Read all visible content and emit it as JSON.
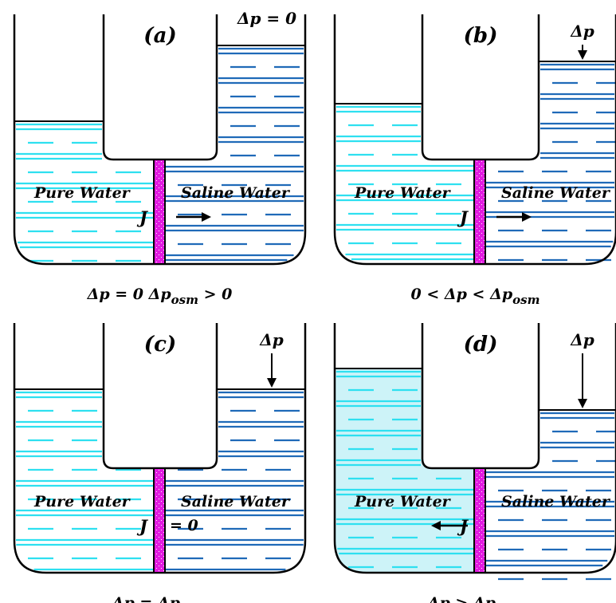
{
  "colors": {
    "pure_water_lines": "#2ee0f0",
    "pure_water_fill": "#cdf3f8",
    "saline_water_lines": "#1f6ab8",
    "membrane": "#e21be0",
    "outline": "#000000",
    "background": "#ffffff"
  },
  "panels": [
    {
      "id": "a",
      "tag": "(a)",
      "left_label": "Pure Water",
      "right_label": "Saline Water",
      "flux_symbol": "J",
      "flux_value": "",
      "flux_direction": "right",
      "top_pressure_text": "Δp = 0",
      "pressure_arrow": false,
      "condition": {
        "parts": [
          {
            "text": "Δp = 0"
          },
          {
            "text": "Δp",
            "sub": "osm",
            "after": " > 0"
          }
        ]
      }
    },
    {
      "id": "b",
      "tag": "(b)",
      "left_label": "Pure Water",
      "right_label": "Saline Water",
      "flux_symbol": "J",
      "flux_value": "",
      "flux_direction": "right",
      "top_pressure_text": "Δp",
      "pressure_arrow": true,
      "condition": {
        "parts": [
          {
            "text": "0 < Δp < Δp",
            "sub": "osm",
            "after": ""
          }
        ]
      }
    },
    {
      "id": "c",
      "tag": "(c)",
      "left_label": "Pure Water",
      "right_label": "Saline Water",
      "flux_symbol": "J",
      "flux_value": "=  0",
      "flux_direction": "none",
      "top_pressure_text": "Δp",
      "pressure_arrow": true,
      "condition": {
        "parts": [
          {
            "text": "Δp = Δp",
            "sub": "osm",
            "after": ""
          }
        ]
      }
    },
    {
      "id": "d",
      "tag": "(d)",
      "left_label": "Pure Water",
      "right_label": "Saline Water",
      "flux_symbol": "J",
      "flux_value": "",
      "flux_direction": "left",
      "top_pressure_text": "Δp",
      "pressure_arrow": true,
      "condition": {
        "parts": [
          {
            "text": "Δp > Δp",
            "sub": "osm",
            "after": ""
          }
        ]
      }
    }
  ]
}
